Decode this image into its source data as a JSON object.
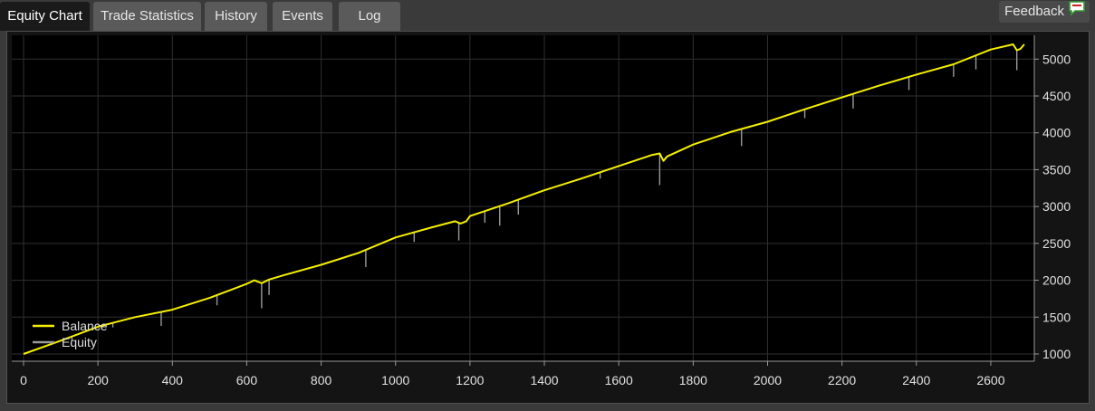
{
  "tabs": [
    {
      "label": "Equity Chart",
      "active": true
    },
    {
      "label": "Trade Statistics",
      "active": false
    },
    {
      "label": "History",
      "active": false
    },
    {
      "label": "Events",
      "active": false
    },
    {
      "label": "Log",
      "active": false
    }
  ],
  "feedback": {
    "label": "Feedback",
    "icon": "speech-bubble-icon"
  },
  "colors": {
    "balance": "#f5f000",
    "equity": "#9a9a9a",
    "grid": "#2f2f2f",
    "plot_background": "#000000"
  },
  "chart_data": {
    "type": "line",
    "title": "",
    "xlabel": "",
    "ylabel": "",
    "xlim": [
      0,
      2700
    ],
    "ylim": [
      1000,
      5200
    ],
    "x_ticks": [
      0,
      200,
      400,
      600,
      800,
      1000,
      1200,
      1400,
      1600,
      1800,
      2000,
      2200,
      2400,
      2600
    ],
    "y_ticks": [
      1000,
      1500,
      2000,
      2500,
      3000,
      3500,
      4000,
      4500,
      5000
    ],
    "grid": true,
    "legend": {
      "placement": "bottom-left",
      "entries": [
        "Balance",
        "Equity"
      ]
    },
    "series": [
      {
        "name": "Balance",
        "x": [
          0,
          100,
          200,
          300,
          400,
          500,
          600,
          620,
          640,
          660,
          700,
          800,
          900,
          1000,
          1100,
          1160,
          1175,
          1190,
          1200,
          1300,
          1400,
          1500,
          1600,
          1690,
          1710,
          1720,
          1730,
          1800,
          1900,
          2000,
          2100,
          2200,
          2300,
          2400,
          2500,
          2600,
          2660,
          2670,
          2680,
          2690
        ],
        "values": [
          1000,
          1180,
          1370,
          1500,
          1600,
          1760,
          1950,
          2000,
          1960,
          2010,
          2070,
          2210,
          2370,
          2580,
          2720,
          2800,
          2770,
          2800,
          2870,
          3040,
          3220,
          3380,
          3550,
          3700,
          3720,
          3620,
          3680,
          3840,
          4010,
          4150,
          4320,
          4480,
          4640,
          4790,
          4930,
          5130,
          5200,
          5120,
          5140,
          5200
        ]
      },
      {
        "name": "Equity",
        "x": [
          0,
          130,
          240,
          370,
          520,
          640,
          660,
          920,
          1050,
          1170,
          1240,
          1280,
          1330,
          1550,
          1710,
          1930,
          2100,
          2230,
          2380,
          2500,
          2560,
          2670
        ],
        "values": [
          1000,
          1180,
          1360,
          1380,
          1660,
          1620,
          1800,
          2180,
          2520,
          2540,
          2780,
          2740,
          2890,
          3380,
          3290,
          3820,
          4200,
          4330,
          4580,
          4760,
          4860,
          4850
        ]
      }
    ]
  }
}
